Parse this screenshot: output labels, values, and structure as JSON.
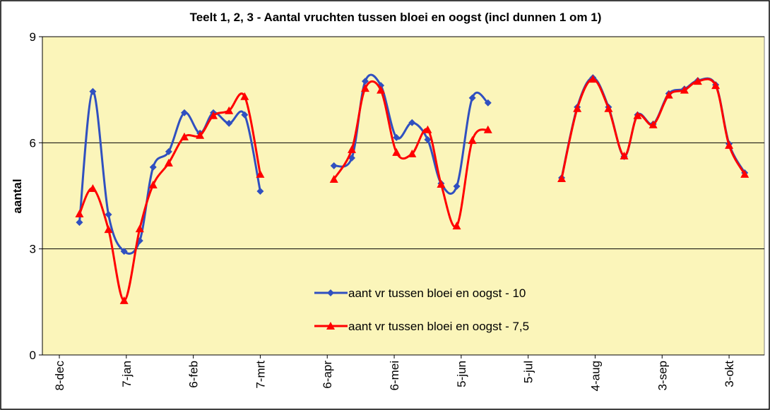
{
  "chart_data": {
    "type": "line",
    "title": "Teelt 1, 2, 3 - Aantal vruchten tussen bloei en oogst (incl dunnen 1 om 1)",
    "ylabel": "aantal",
    "x": [
      9,
      15,
      22,
      29,
      36,
      42,
      49,
      56,
      63,
      69,
      76,
      83,
      90,
      null,
      123,
      131,
      137,
      144,
      151,
      158,
      165,
      171,
      178,
      185,
      192,
      null,
      225,
      232,
      239,
      246,
      253,
      259,
      266,
      273,
      280,
      286,
      294,
      300,
      307
    ],
    "series": [
      {
        "name": "aant vr tussen bloei en oogst - 10",
        "color": "#3050C0",
        "marker": "diamond",
        "values": [
          3.75,
          7.45,
          3.97,
          2.93,
          3.23,
          5.31,
          5.75,
          6.85,
          6.27,
          6.85,
          6.55,
          6.79,
          4.63,
          null,
          5.35,
          5.57,
          7.74,
          7.62,
          6.15,
          6.57,
          6.09,
          4.85,
          4.77,
          7.27,
          7.13,
          null,
          5.01,
          7.01,
          7.84,
          7.01,
          5.61,
          6.79,
          6.53,
          7.39,
          7.52,
          7.76,
          7.64,
          5.97,
          5.15
        ]
      },
      {
        "name": "aant vr tussen bloei en oogst - 7,5",
        "color": "#FF0000",
        "marker": "triangle",
        "values": [
          3.99,
          4.71,
          3.55,
          1.54,
          3.57,
          4.81,
          5.43,
          6.17,
          6.21,
          6.77,
          6.91,
          7.31,
          5.11,
          null,
          4.97,
          5.81,
          7.54,
          7.49,
          5.73,
          5.69,
          6.37,
          4.83,
          3.65,
          6.07,
          6.37,
          null,
          4.99,
          6.97,
          7.8,
          6.97,
          5.63,
          6.77,
          6.51,
          7.35,
          7.49,
          7.74,
          7.62,
          5.93,
          5.11
        ]
      }
    ],
    "xlim": [
      -7.6,
      315.8
    ],
    "xticks": [
      {
        "value": 0,
        "label": "8-dec"
      },
      {
        "value": 30,
        "label": "7-jan"
      },
      {
        "value": 60,
        "label": "6-feb"
      },
      {
        "value": 90,
        "label": "7-mrt"
      },
      {
        "value": 120,
        "label": "6-apr"
      },
      {
        "value": 150,
        "label": "6-mei"
      },
      {
        "value": 180,
        "label": "5-jun"
      },
      {
        "value": 210,
        "label": "5-jul"
      },
      {
        "value": 240,
        "label": "4-aug"
      },
      {
        "value": 270,
        "label": "3-sep"
      },
      {
        "value": 300,
        "label": "3-okt"
      }
    ],
    "ylim": [
      0,
      9
    ],
    "yticks": [
      0,
      3,
      6,
      9
    ],
    "grid": true,
    "smooth": true,
    "background": "#FBF5BA"
  }
}
